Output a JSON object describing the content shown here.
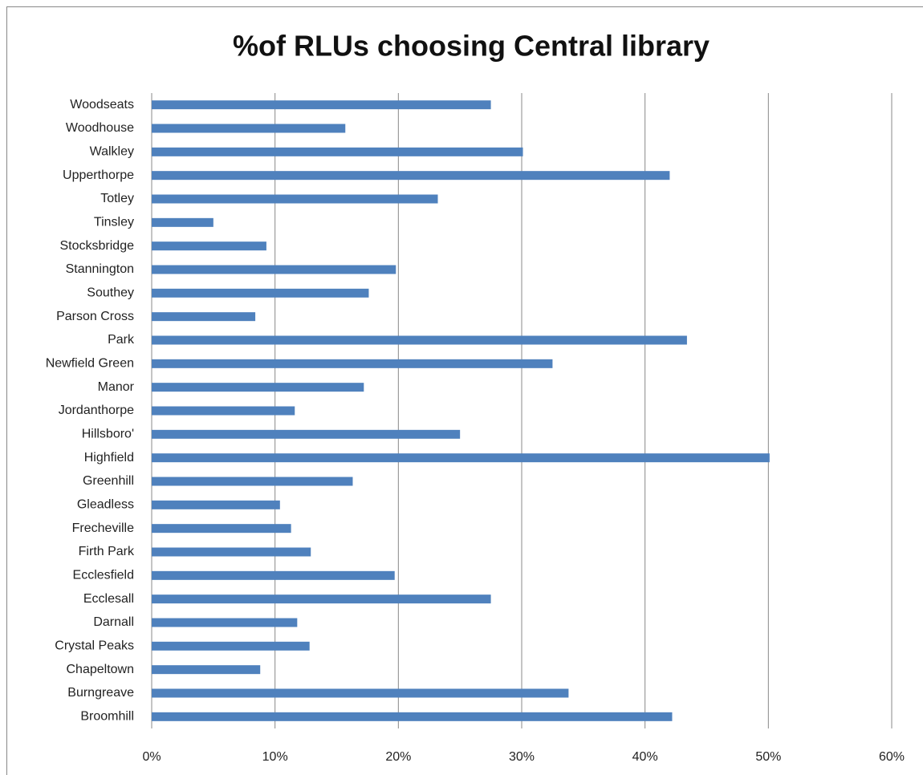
{
  "chart_data": {
    "type": "bar",
    "orientation": "horizontal",
    "title": "%of RLUs choosing Central library",
    "categories": [
      "Woodseats",
      "Woodhouse",
      "Walkley",
      "Upperthorpe",
      "Totley",
      "Tinsley",
      "Stocksbridge",
      "Stannington",
      "Southey",
      "Parson Cross",
      "Park",
      "Newfield Green",
      "Manor",
      "Jordanthorpe",
      "Hillsboro'",
      "Highfield",
      "Greenhill",
      "Gleadless",
      "Frecheville",
      "Firth Park",
      "Ecclesfield",
      "Ecclesall",
      "Darnall",
      "Crystal Peaks",
      "Chapeltown",
      "Burngreave",
      "Broomhill"
    ],
    "values": [
      27.5,
      15.7,
      30.1,
      42.0,
      23.2,
      5.0,
      9.3,
      19.8,
      17.6,
      8.4,
      43.4,
      32.5,
      17.2,
      11.6,
      25.0,
      50.1,
      16.3,
      10.4,
      11.3,
      12.9,
      19.7,
      27.5,
      11.8,
      12.8,
      8.8,
      33.8,
      42.2
    ],
    "color": "#4f81bd",
    "xlim": [
      0,
      60
    ],
    "xticks": [
      {
        "value": 0,
        "label": "0%"
      },
      {
        "value": 10,
        "label": "10%"
      },
      {
        "value": 20,
        "label": "20%"
      },
      {
        "value": 30,
        "label": "30%"
      },
      {
        "value": 40,
        "label": "40%"
      },
      {
        "value": 50,
        "label": "50%"
      },
      {
        "value": 60,
        "label": "60%"
      }
    ],
    "grid": true
  }
}
